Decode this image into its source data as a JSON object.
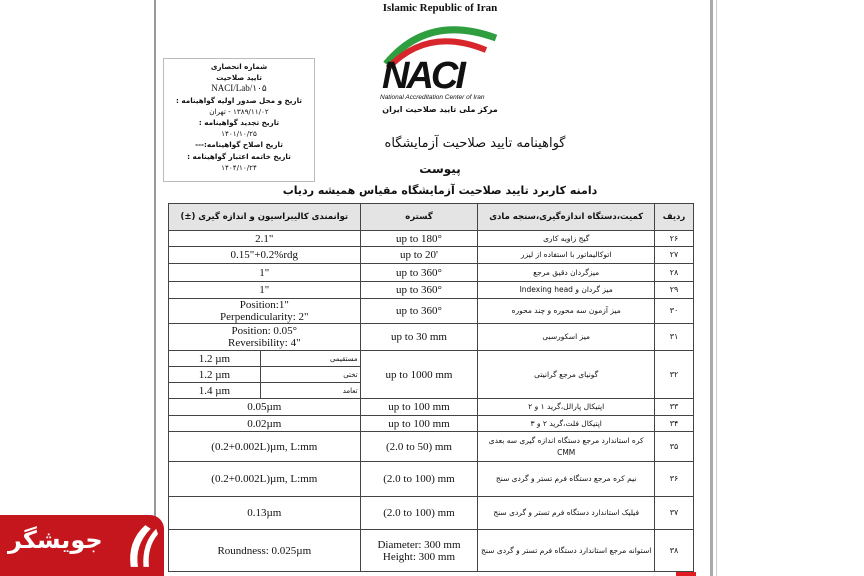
{
  "header": {
    "country": "Islamic Republic of Iran",
    "logo": {
      "text": "NACI",
      "subtitle_en": "National Accreditation Center of Iran",
      "subtitle_fa": "مرکز ملی تایید صلاحیت ایران"
    }
  },
  "info_box": {
    "line1": "شماره انحصاری",
    "line2": "تایید صلاحیت",
    "code": "NACI/Lab/۱۰۵",
    "issue_label": "تاریخ و محل صدور اولیه گواهینامه :",
    "issue_value": "۱۳۸۹/۱۱/۰۲ - تهران",
    "renew_label": "تاریخ تجدید گواهینامه :",
    "renew_value": "۱۴۰۱/۱۰/۲۵",
    "amend_label": "تاریخ اصلاح گواهینامه:---",
    "expiry_label": "تاریخ خاتمه اعتبار گواهینامه :",
    "expiry_value": "۱۴۰۴/۱۰/۲۴"
  },
  "titles": {
    "title": "گواهینامه تایید صلاحیت آزمایشگاه",
    "appendix": "پیوست",
    "scope": "دامنه کاربرد تایید صلاحیت آزمایشگاه مقیاس همیشه ردیاب"
  },
  "table": {
    "headers": [
      "ردیف",
      "کمیت،دستگاه اندازه‌گیری،سنجه مادی",
      "گستره",
      "توانمندی کالیبراسیون و اندازه گیری (±)"
    ],
    "rows": [
      {
        "no": "۲۶",
        "item": "گیج زاویه کاری",
        "range": "up to 180°",
        "cmc": "2.1\""
      },
      {
        "no": "۲۷",
        "item": "اتوکالیماتور با استفاده از لیزر",
        "range": "up to 20'",
        "cmc": "0.15\"+0.2%rdg"
      },
      {
        "no": "۲۸",
        "item": "میزگردان دقیق مرجع",
        "range": "up to 360°",
        "cmc": "1\""
      },
      {
        "no": "۲۹",
        "item": "میز گردان و Indexing head",
        "range": "up to 360°",
        "cmc": "1\""
      },
      {
        "no": "۳۰",
        "item": "میز آزمون سه محوره و چند محوره",
        "range": "up to 360°",
        "cmc": "Position:1\"",
        "cmc2": "Perpendicularity: 2\""
      },
      {
        "no": "۳۱",
        "item": "میز اسکورسبی",
        "range": "up to 30 mm",
        "cmc": "Position: 0.05°",
        "cmc2": "Reversibility: 4\""
      },
      {
        "no": "۳۲",
        "item": "گونیای مرجع گرانیتی",
        "range": "up to 1000 mm",
        "sub": [
          {
            "label": "مستقیمی",
            "value": "1.2 µm"
          },
          {
            "label": "تختی",
            "value": "1.2 µm"
          },
          {
            "label": "تعامد",
            "value": "1.4 µm"
          }
        ]
      },
      {
        "no": "۳۳",
        "item": "اپتیکال پارالل،گرید ۱ و ۲",
        "range": "up to 100 mm",
        "cmc": "0.05µm"
      },
      {
        "no": "۳۴",
        "item": "اپتیکال فلت،گرید ۲ و ۳",
        "range": "up to 100 mm",
        "cmc": "0.02µm"
      },
      {
        "no": "۳۵",
        "item": "کره استاندارد مرجع دستگاه اندازه گیری سه بعدی CMM",
        "range": "(2.0 to 50) mm",
        "cmc": "(0.2+0.002L)µm, L:mm"
      },
      {
        "no": "۳۶",
        "item": "نیم کره مرجع دستگاه فرم تستر و گردی سنج",
        "range": "(2.0 to 100) mm",
        "cmc": "(0.2+0.002L)µm, L:mm"
      },
      {
        "no": "۳۷",
        "item": "فیلیک استاندارد دستگاه فرم تستر و گردی سنج",
        "range": "(2.0 to 100) mm",
        "cmc": "0.13µm"
      },
      {
        "no": "۳۸",
        "item": "استوانه مرجع استاندارد دستگاه فرم تستر و گردی سنج",
        "range": "Diameter: 300 mm",
        "range2": "Height: 300 mm",
        "cmc": "Roundness: 0.025µm"
      }
    ]
  },
  "watermark": {
    "text": "جویشگر",
    "color": "#c4161c"
  }
}
